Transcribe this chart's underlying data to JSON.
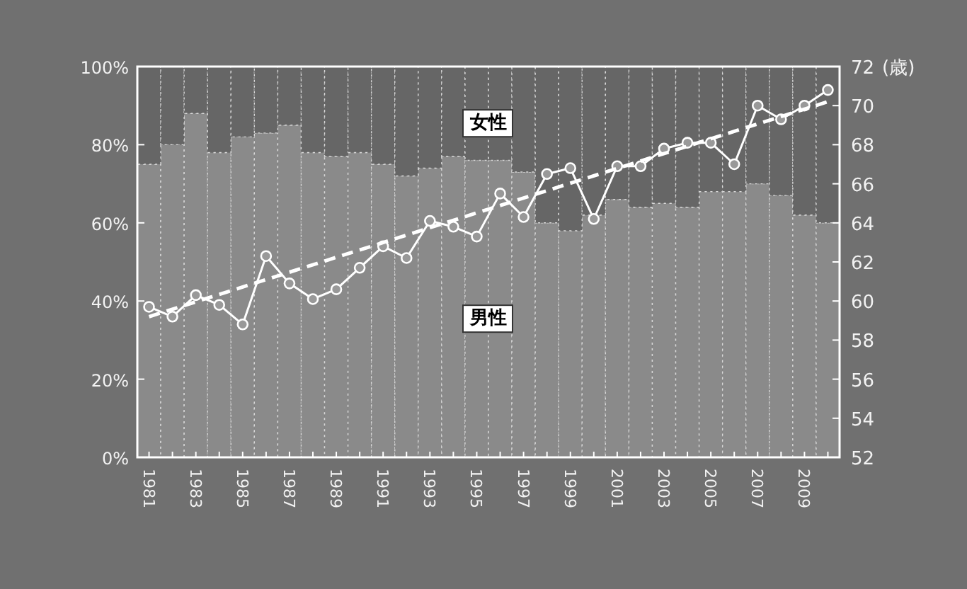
{
  "chart_data": {
    "type": "bar",
    "stacked": true,
    "x": [
      1981,
      1982,
      1983,
      1984,
      1985,
      1986,
      1987,
      1988,
      1989,
      1990,
      1991,
      1992,
      1993,
      1994,
      1995,
      1996,
      1997,
      1998,
      1999,
      2000,
      2001,
      2002,
      2003,
      2004,
      2005,
      2006,
      2007,
      2008,
      2009,
      2010
    ],
    "xlim": [
      1980.5,
      2010.5
    ],
    "xticks": [
      1981,
      {
        "value": 1982,
        "label": null
      },
      1983,
      {
        "value": 1984,
        "label": null
      },
      1985,
      {
        "value": 1986,
        "label": null
      },
      1987,
      {
        "value": 1988,
        "label": null
      },
      1989,
      {
        "value": 1990,
        "label": null
      },
      1991,
      {
        "value": 1992,
        "label": null
      },
      1993,
      {
        "value": 1994,
        "label": null
      },
      1995,
      {
        "value": 1996,
        "label": null
      },
      1997,
      {
        "value": 1998,
        "label": null
      },
      1999,
      {
        "value": 2000,
        "label": null
      },
      2001,
      {
        "value": 2002,
        "label": null
      },
      2003,
      {
        "value": 2004,
        "label": null
      },
      2005,
      {
        "value": 2006,
        "label": null
      },
      2007,
      {
        "value": 2008,
        "label": null
      },
      2009,
      {
        "value": 2010,
        "label": null
      }
    ],
    "ylim": [
      0,
      100
    ],
    "yticks": [
      {
        "value": 0,
        "label": "0%"
      },
      {
        "value": 20,
        "label": "20%"
      },
      {
        "value": 40,
        "label": "40%"
      },
      {
        "value": 60,
        "label": "60%"
      },
      {
        "value": 80,
        "label": "80%"
      },
      {
        "value": 100,
        "label": "100%"
      }
    ],
    "y2lim": [
      52,
      72
    ],
    "y2ticks": [
      52,
      54,
      56,
      58,
      60,
      62,
      64,
      66,
      68,
      70,
      72
    ],
    "y2label": "(歳)",
    "series": [
      {
        "name": "男性",
        "color": "#8a8a8a",
        "values": [
          75,
          80,
          88,
          78,
          82,
          83,
          85,
          78,
          77,
          78,
          75,
          72,
          74,
          77,
          76,
          76,
          73,
          60,
          58,
          62,
          66,
          64,
          65,
          64,
          68,
          68,
          70,
          67,
          62,
          60
        ]
      },
      {
        "name": "女性",
        "color": "#666666",
        "values": [
          25,
          20,
          12,
          22,
          18,
          17,
          15,
          22,
          23,
          22,
          25,
          28,
          26,
          23,
          24,
          24,
          27,
          40,
          42,
          38,
          34,
          36,
          35,
          36,
          32,
          32,
          30,
          33,
          38,
          40
        ]
      },
      {
        "type": "line",
        "axis": "y2",
        "color": "#ffffff",
        "marker": "circle",
        "values": [
          59.7,
          59.2,
          60.3,
          59.8,
          58.8,
          62.3,
          60.9,
          60.1,
          60.6,
          61.7,
          62.8,
          62.2,
          64.1,
          63.8,
          63.3,
          65.5,
          64.3,
          66.5,
          66.8,
          64.2,
          66.9,
          66.9,
          67.8,
          68.1,
          68.1,
          67.0,
          70.0,
          69.3,
          70.0,
          70.8
        ]
      },
      {
        "type": "line",
        "axis": "y2",
        "color": "#ffffff",
        "line_style": "dashed",
        "x": [
          1981,
          2010
        ],
        "values": [
          59.2,
          70.2
        ]
      }
    ]
  }
}
